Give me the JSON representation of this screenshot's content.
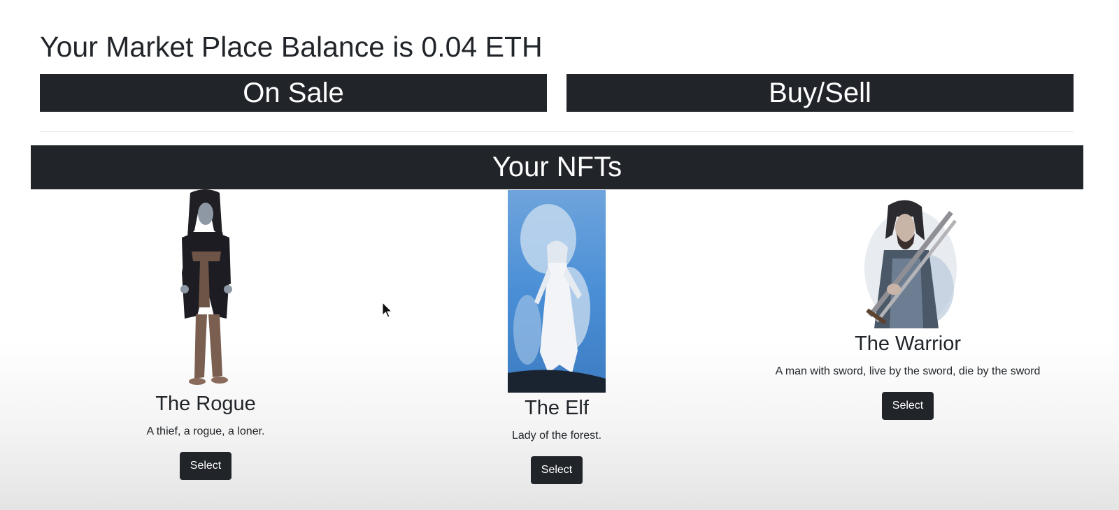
{
  "balance_text": "Your Market Place Balance is 0.04 ETH",
  "tabs": {
    "on_sale": "On Sale",
    "buy_sell": "Buy/Sell"
  },
  "nfts_header": "Your NFTs",
  "cards": [
    {
      "title": "The Rogue",
      "description": "A thief, a rogue, a loner.",
      "button": "Select",
      "icon": "rogue-image"
    },
    {
      "title": "The Elf",
      "description": "Lady of the forest.",
      "button": "Select",
      "icon": "elf-image"
    },
    {
      "title": "The Warrior",
      "description": "A man with sword, live by the sword, die by the sword",
      "button": "Select",
      "icon": "warrior-image"
    }
  ],
  "colors": {
    "dark": "#212529",
    "elf_blue": "#4a8fd6"
  }
}
